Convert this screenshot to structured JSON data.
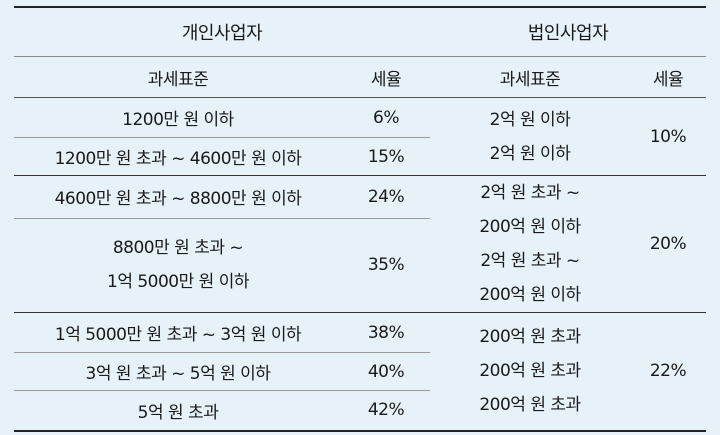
{
  "headers": {
    "individual": "개인사업자",
    "corporate": "법인사업자",
    "tax_base": "과세표준",
    "tax_rate": "세율"
  },
  "individual_rows": [
    {
      "base": "1200만 원 이하",
      "rate": "6%"
    },
    {
      "base": "1200만 원 초과 ~ 4600만 원 이하",
      "rate": "15%"
    },
    {
      "base": "4600만 원 초과 ~ 8800만 원 이하",
      "rate": "24%"
    },
    {
      "base_line1": "8800만 원 초과 ~",
      "base_line2": "1억 5000만 원 이하",
      "rate": "35%"
    },
    {
      "base": "1억 5000만 원 초과 ~ 3억 원 이하",
      "rate": "38%"
    },
    {
      "base": "3억 원 초과 ~ 5억 원 이하",
      "rate": "40%"
    },
    {
      "base": "5억 원 초과",
      "rate": "42%"
    }
  ],
  "corporate_groups": [
    {
      "lines": [
        "2억 원 이하",
        "2억 원 이하"
      ],
      "rate": "10%"
    },
    {
      "lines": [
        "2억 원 초과 ~",
        "200억 원 이하",
        "2억 원 초과 ~",
        "200억 원 이하"
      ],
      "rate": "20%"
    },
    {
      "lines": [
        "200억 원 초과",
        "200억 원 초과",
        "200억 원 초과"
      ],
      "rate": "22%"
    }
  ]
}
